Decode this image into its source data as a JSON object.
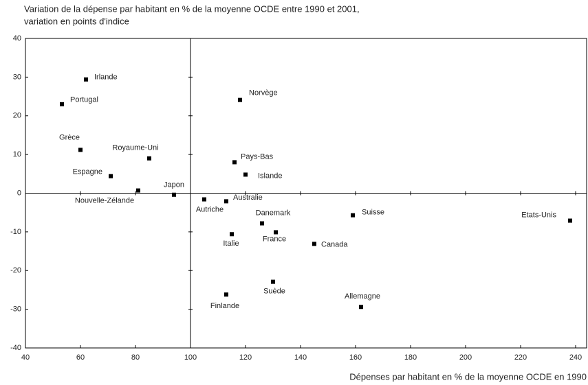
{
  "chart_data": {
    "type": "scatter",
    "ylabel": [
      "Variation de la dépense par habitant en % de la moyenne OCDE entre 1990 et 2001,",
      "variation en points d'indice"
    ],
    "xlabel": "Dépenses par habitant en % de la moyenne OCDE en 1990",
    "color": "#000000",
    "points": [
      {
        "name": "Irlande",
        "x": 62,
        "y": 29.4
      },
      {
        "name": "Portugal",
        "x": 53.25,
        "y": 23.0
      },
      {
        "name": "Grèce",
        "x": 60,
        "y": 11.2
      },
      {
        "name": "Royaume-Uni",
        "x": 85,
        "y": 9.0
      },
      {
        "name": "Espagne",
        "x": 71,
        "y": 4.4
      },
      {
        "name": "Nouvelle-Zélande",
        "x": 81,
        "y": 0.7
      },
      {
        "name": "Japon",
        "x": 94,
        "y": -0.4
      },
      {
        "name": "Norvège",
        "x": 118,
        "y": 24.1
      },
      {
        "name": "Pays-Bas",
        "x": 116,
        "y": 8.0
      },
      {
        "name": "Islande",
        "x": 120,
        "y": 4.8
      },
      {
        "name": "Autriche",
        "x": 105,
        "y": -1.6
      },
      {
        "name": "Australie",
        "x": 113,
        "y": -2.1
      },
      {
        "name": "Danemark",
        "x": 126,
        "y": -7.8
      },
      {
        "name": "France",
        "x": 131,
        "y": -10.1
      },
      {
        "name": "Italie",
        "x": 115,
        "y": -10.6
      },
      {
        "name": "Canada",
        "x": 145,
        "y": -13.1
      },
      {
        "name": "Suisse",
        "x": 159,
        "y": -5.7
      },
      {
        "name": "Etats-Unis",
        "x": 238,
        "y": -7.1
      },
      {
        "name": "Suède",
        "x": 130,
        "y": -22.9
      },
      {
        "name": "Finlande",
        "x": 113,
        "y": -26.2
      },
      {
        "name": "Allemagne",
        "x": 162,
        "y": -29.4
      }
    ],
    "reference_lines": {
      "x": 100,
      "y": 0
    },
    "xlim": [
      40,
      244
    ],
    "ylim": [
      -40,
      40
    ],
    "xticks": [
      40,
      60,
      80,
      100,
      120,
      140,
      160,
      180,
      200,
      220,
      240
    ],
    "yticks": [
      -40,
      -30,
      -20,
      -10,
      0,
      10,
      20,
      30,
      40
    ]
  }
}
